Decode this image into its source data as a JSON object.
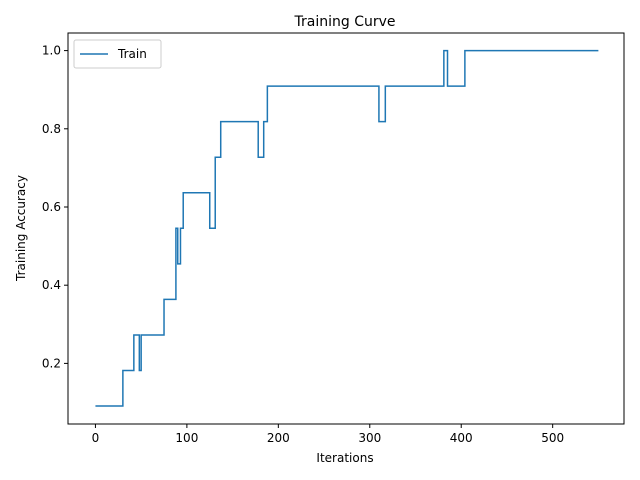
{
  "chart_data": {
    "type": "line",
    "title": "Training Curve",
    "xlabel": "Iterations",
    "ylabel": "Training Accuracy",
    "xlim": [
      -30,
      578
    ],
    "ylim": [
      0.045,
      1.045
    ],
    "xticks": [
      0,
      100,
      200,
      300,
      400,
      500
    ],
    "yticks": [
      0.2,
      0.4,
      0.6,
      0.8,
      1.0
    ],
    "xtick_labels": [
      "0",
      "100",
      "200",
      "300",
      "400",
      "500"
    ],
    "ytick_labels": [
      "0.2",
      "0.4",
      "0.6",
      "0.8",
      "1.0"
    ],
    "grid": false,
    "legend_placement": "upper-left",
    "series": [
      {
        "name": "Train",
        "color": "#1f77b4",
        "x": [
          0,
          30,
          30,
          42,
          42,
          48,
          48,
          50,
          50,
          52,
          52,
          75,
          75,
          88,
          88,
          90,
          90,
          93,
          93,
          96,
          96,
          101,
          101,
          125,
          125,
          131,
          131,
          137,
          137,
          178,
          178,
          184,
          184,
          188,
          188,
          310,
          310,
          317,
          317,
          381,
          381,
          385,
          385,
          404,
          404,
          550
        ],
        "y": [
          0.0909,
          0.0909,
          0.1818,
          0.1818,
          0.2727,
          0.2727,
          0.1818,
          0.1818,
          0.2727,
          0.2727,
          0.2727,
          0.2727,
          0.3636,
          0.3636,
          0.5455,
          0.5455,
          0.4545,
          0.4545,
          0.5455,
          0.5455,
          0.6364,
          0.6364,
          0.6364,
          0.6364,
          0.5455,
          0.5455,
          0.7273,
          0.7273,
          0.8182,
          0.8182,
          0.7273,
          0.7273,
          0.8182,
          0.8182,
          0.9091,
          0.9091,
          0.8182,
          0.8182,
          0.9091,
          0.9091,
          1.0,
          1.0,
          0.9091,
          0.9091,
          1.0,
          1.0
        ]
      }
    ]
  }
}
